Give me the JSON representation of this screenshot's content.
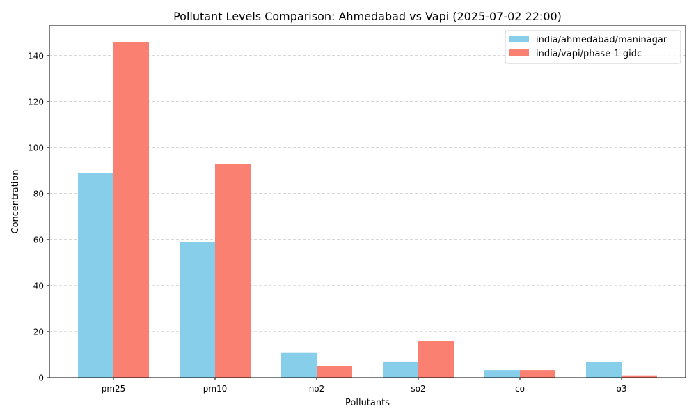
{
  "chart_data": {
    "type": "bar",
    "title": "Pollutant Levels Comparison: Ahmedabad vs Vapi (2025-07-02 22:00)",
    "xlabel": "Pollutants",
    "ylabel": "Concentration",
    "categories": [
      "pm25",
      "pm10",
      "no2",
      "so2",
      "co",
      "o3"
    ],
    "series": [
      {
        "name": "india/ahmedabad/maninagar",
        "color": "#87ceeb",
        "values": [
          89,
          59,
          11,
          7,
          3.3,
          6.7
        ]
      },
      {
        "name": "india/vapi/phase-1-gidc",
        "color": "#fa8072",
        "values": [
          146,
          93,
          5,
          16,
          3.3,
          1
        ]
      }
    ],
    "ylim": [
      0,
      153
    ],
    "yticks": [
      0,
      20,
      40,
      60,
      80,
      100,
      120,
      140
    ],
    "grid": "y-dashed",
    "legend_position": "top-right"
  }
}
